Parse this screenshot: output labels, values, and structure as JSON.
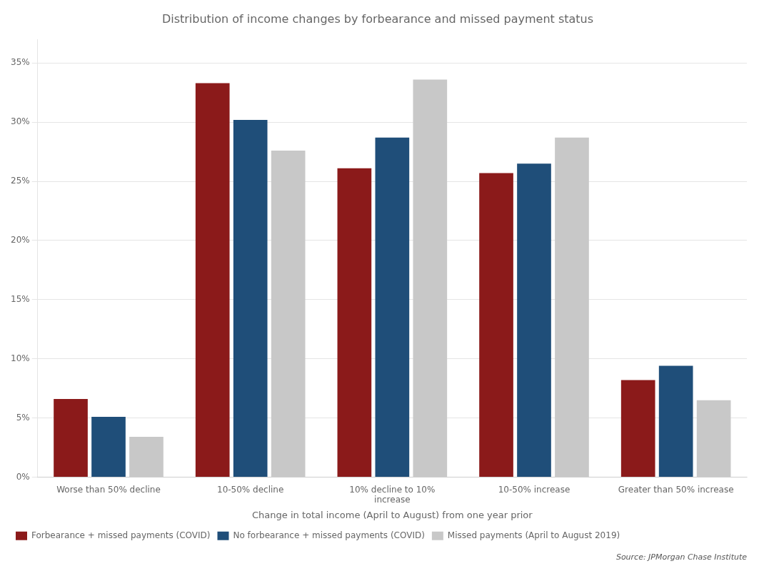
{
  "chart_data": {
    "type": "bar",
    "title": "Distribution of income changes by forbearance and missed payment status",
    "xlabel": "Change in total income (April to August) from one year prior",
    "categories": [
      "Worse than 50% decline",
      "10-50% decline",
      "10% decline to 10%\nincrease",
      "10-50% increase",
      "Greater than 50% increase"
    ],
    "series": [
      {
        "name": "Forbearance + missed payments (COVID)",
        "color": "#8B1A1A",
        "values": [
          6.6,
          33.3,
          26.1,
          25.7,
          8.2
        ]
      },
      {
        "name": "No forbearance + missed payments (COVID)",
        "color": "#1F4E79",
        "values": [
          5.1,
          30.2,
          28.7,
          26.5,
          9.4
        ]
      },
      {
        "name": "Missed payments (April to August 2019)",
        "color": "#C8C8C8",
        "values": [
          3.4,
          27.6,
          33.6,
          28.7,
          6.5
        ]
      }
    ],
    "ylim": [
      0,
      37
    ],
    "yticks": [
      {
        "value": 0,
        "label": "0%"
      },
      {
        "value": 5,
        "label": "5%"
      },
      {
        "value": 10,
        "label": "10%"
      },
      {
        "value": 15,
        "label": "15%"
      },
      {
        "value": 20,
        "label": "20%"
      },
      {
        "value": 25,
        "label": "25%"
      },
      {
        "value": 30,
        "label": "30%"
      },
      {
        "value": 35,
        "label": "35%"
      }
    ],
    "grid": true,
    "legend": "bottom",
    "annotations": [
      "Source: JPMorgan Chase Institute"
    ]
  }
}
